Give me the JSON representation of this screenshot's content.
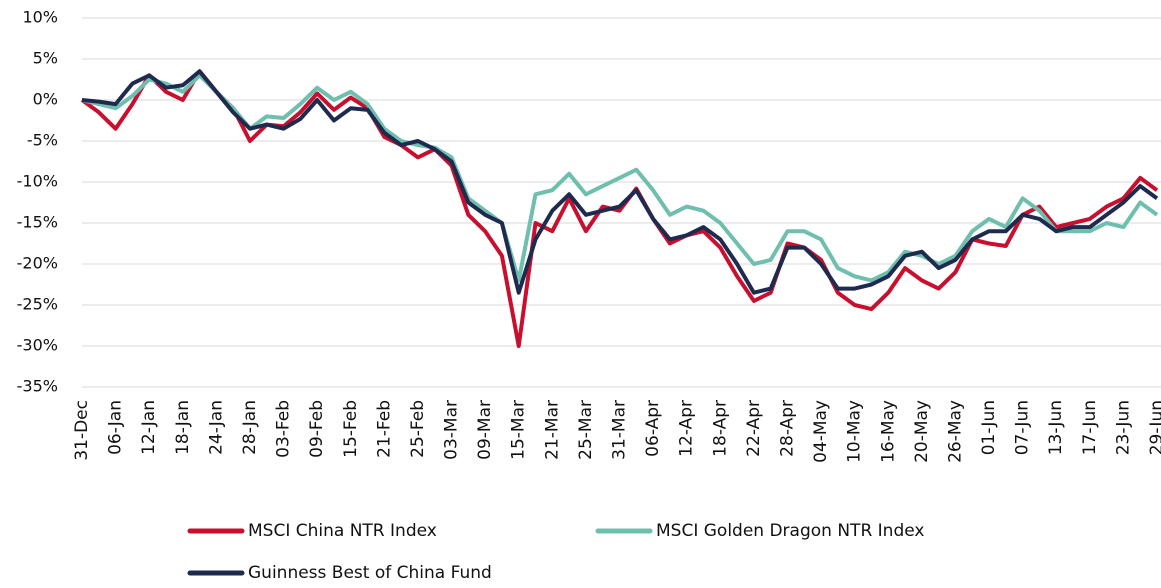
{
  "chart_data": {
    "type": "line",
    "categories": [
      "31-Dec",
      null,
      "06-Jan",
      null,
      "12-Jan",
      null,
      "18-Jan",
      null,
      "24-Jan",
      null,
      "28-Jan",
      null,
      "03-Feb",
      null,
      "09-Feb",
      null,
      "15-Feb",
      null,
      "21-Feb",
      null,
      "25-Feb",
      null,
      "03-Mar",
      null,
      "09-Mar",
      null,
      "15-Mar",
      null,
      "21-Mar",
      null,
      "25-Mar",
      null,
      "31-Mar",
      null,
      "06-Apr",
      null,
      "12-Apr",
      null,
      "18-Apr",
      null,
      "22-Apr",
      null,
      "28-Apr",
      null,
      "04-May",
      null,
      "10-May",
      null,
      "16-May",
      null,
      "20-May",
      null,
      "26-May",
      null,
      "01-Jun",
      null,
      "07-Jun",
      null,
      "13-Jun",
      null,
      "17-Jun",
      null,
      "23-Jun",
      null,
      "29-Jun"
    ],
    "series": [
      {
        "name": "MSCI China NTR Index",
        "color": "#c8102e",
        "values": [
          0,
          -1.5,
          -3.5,
          -0.5,
          3,
          1,
          0,
          3.5,
          1,
          -1,
          -5,
          -3,
          -3.2,
          -1.5,
          0.8,
          -1.2,
          0.3,
          -1,
          -4.5,
          -5.5,
          -7,
          -6,
          -8,
          -14,
          -16,
          -19,
          -30,
          -15,
          -16,
          -12,
          -16,
          -13,
          -13.5,
          -10.8,
          -14.5,
          -17.5,
          -16.5,
          -16,
          -18,
          -21.5,
          -24.5,
          -23.5,
          -17.5,
          -18,
          -19.5,
          -23.5,
          -25,
          -25.5,
          -23.5,
          -20.5,
          -22,
          -23,
          -21,
          -17,
          -17.5,
          -17.8,
          -14,
          -13,
          -15.5,
          -15,
          -14.5,
          -13,
          -12,
          -9.5,
          -11
        ]
      },
      {
        "name": "MSCI Golden Dragon NTR Index",
        "color": "#6fbfae",
        "values": [
          0,
          -0.5,
          -1,
          0.5,
          2.5,
          2,
          1,
          3,
          1,
          -1,
          -3.5,
          -2,
          -2.2,
          -0.5,
          1.5,
          0,
          1,
          -0.5,
          -3.5,
          -5,
          -5.5,
          -5.8,
          -7,
          -12,
          -13.5,
          -15,
          -22,
          -11.5,
          -11,
          -9,
          -11.5,
          -10.5,
          -9.5,
          -8.5,
          -11,
          -14,
          -13,
          -13.5,
          -15,
          -17.5,
          -20,
          -19.5,
          -16,
          -16,
          -17,
          -20.5,
          -21.5,
          -22,
          -21,
          -18.5,
          -19,
          -20,
          -19,
          -16,
          -14.5,
          -15.5,
          -12,
          -13.5,
          -16,
          -16,
          -16,
          -15,
          -15.5,
          -12.5,
          -14
        ]
      },
      {
        "name": "Guinness Best of China Fund",
        "color": "#1f2a4f",
        "values": [
          0,
          -0.2,
          -0.5,
          2,
          3,
          1.5,
          1.8,
          3.5,
          1,
          -1.5,
          -3.5,
          -3,
          -3.5,
          -2.3,
          0,
          -2.5,
          -1,
          -1.2,
          -4,
          -5.5,
          -5,
          -6,
          -7.5,
          -12.5,
          -14,
          -15,
          -23.5,
          -17,
          -13.5,
          -11.5,
          -14,
          -13.5,
          -13,
          -11,
          -14.5,
          -17,
          -16.5,
          -15.5,
          -17,
          -20,
          -23.5,
          -23,
          -18,
          -18,
          -20,
          -23,
          -23,
          -22.5,
          -21.5,
          -19,
          -18.5,
          -20.5,
          -19.5,
          -17,
          -16,
          -16,
          -14,
          -14.5,
          -16,
          -15.5,
          -15.5,
          -14,
          -12.5,
          -10.5,
          -12
        ]
      }
    ],
    "ylim": [
      -35,
      10
    ],
    "yticks": [
      {
        "value": -35,
        "label": "-35%"
      },
      {
        "value": -30,
        "label": "-30%"
      },
      {
        "value": -25,
        "label": "-25%"
      },
      {
        "value": -20,
        "label": "-20%"
      },
      {
        "value": -15,
        "label": "-15%"
      },
      {
        "value": -10,
        "label": "-10%"
      },
      {
        "value": -5,
        "label": "-5%"
      },
      {
        "value": 0,
        "label": "0%"
      },
      {
        "value": 5,
        "label": "5%"
      },
      {
        "value": 10,
        "label": "10%"
      }
    ],
    "grid": true,
    "legend": "bottom"
  }
}
